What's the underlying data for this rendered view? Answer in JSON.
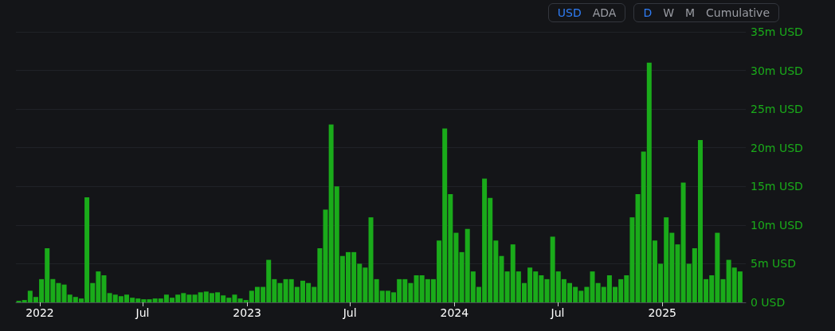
{
  "chart_data": {
    "type": "bar",
    "annotations": [
      "USD",
      "ADA",
      "D",
      "W",
      "M",
      "Cumulative"
    ],
    "x": [
      "2021-11-25",
      "2021-12-05",
      "2021-12-15",
      "2021-12-25",
      "2022-01-04",
      "2022-01-14",
      "2022-01-24",
      "2022-02-03",
      "2022-02-13",
      "2022-02-23",
      "2022-03-05",
      "2022-03-15",
      "2022-03-25",
      "2022-04-04",
      "2022-04-14",
      "2022-04-24",
      "2022-05-04",
      "2022-05-14",
      "2022-05-24",
      "2022-06-03",
      "2022-06-13",
      "2022-06-23",
      "2022-07-03",
      "2022-07-13",
      "2022-07-23",
      "2022-08-02",
      "2022-08-12",
      "2022-08-22",
      "2022-09-01",
      "2022-09-11",
      "2022-09-21",
      "2022-10-01",
      "2022-10-11",
      "2022-10-21",
      "2022-10-31",
      "2022-11-10",
      "2022-11-20",
      "2022-11-30",
      "2022-12-10",
      "2022-12-20",
      "2022-12-30",
      "2023-01-09",
      "2023-01-19",
      "2023-01-29",
      "2023-02-08",
      "2023-02-18",
      "2023-02-28",
      "2023-03-10",
      "2023-03-20",
      "2023-03-30",
      "2023-04-09",
      "2023-04-19",
      "2023-04-29",
      "2023-05-09",
      "2023-05-19",
      "2023-05-29",
      "2023-06-08",
      "2023-06-18",
      "2023-06-28",
      "2023-07-08",
      "2023-07-18",
      "2023-07-28",
      "2023-08-07",
      "2023-08-17",
      "2023-08-27",
      "2023-09-06",
      "2023-09-16",
      "2023-09-26",
      "2023-10-06",
      "2023-10-16",
      "2023-10-26",
      "2023-11-05",
      "2023-11-15",
      "2023-11-25",
      "2023-12-05",
      "2023-12-15",
      "2023-12-25",
      "2024-01-04",
      "2024-01-14",
      "2024-01-24",
      "2024-02-03",
      "2024-02-13",
      "2024-02-23",
      "2024-03-04",
      "2024-03-14",
      "2024-03-24",
      "2024-04-03",
      "2024-04-13",
      "2024-04-23",
      "2024-05-03",
      "2024-05-13",
      "2024-05-23",
      "2024-06-02",
      "2024-06-12",
      "2024-06-22",
      "2024-07-02",
      "2024-07-12",
      "2024-07-22",
      "2024-08-01",
      "2024-08-11",
      "2024-08-21",
      "2024-08-31",
      "2024-09-10",
      "2024-09-20",
      "2024-09-30",
      "2024-10-10",
      "2024-10-20",
      "2024-10-30",
      "2024-11-09",
      "2024-11-19",
      "2024-11-29",
      "2024-12-09",
      "2024-12-19",
      "2024-12-29",
      "2025-01-08",
      "2025-01-18",
      "2025-01-28",
      "2025-02-07",
      "2025-02-17",
      "2025-02-27",
      "2025-03-09",
      "2025-03-19",
      "2025-03-29",
      "2025-04-08",
      "2025-04-18",
      "2025-04-28",
      "2025-05-08",
      "2025-05-18"
    ],
    "values": [
      0.2,
      0.3,
      1.5,
      0.7,
      3.0,
      7.0,
      3.0,
      2.5,
      2.3,
      1.0,
      0.7,
      0.5,
      13.6,
      2.5,
      4.0,
      3.5,
      1.2,
      1.0,
      0.8,
      1.0,
      0.6,
      0.5,
      0.4,
      0.4,
      0.5,
      0.5,
      1.0,
      0.6,
      1.0,
      1.2,
      1.0,
      1.0,
      1.3,
      1.4,
      1.2,
      1.3,
      0.9,
      0.6,
      1.0,
      0.5,
      0.3,
      1.5,
      2.0,
      2.0,
      5.5,
      3.0,
      2.5,
      3.0,
      3.0,
      2.0,
      2.8,
      2.5,
      2.0,
      7.0,
      12.0,
      23.0,
      15.0,
      6.0,
      6.5,
      6.5,
      5.0,
      4.5,
      11.0,
      3.0,
      1.5,
      1.5,
      1.3,
      3.0,
      3.0,
      2.5,
      3.5,
      3.5,
      3.0,
      3.0,
      8.0,
      22.5,
      14.0,
      9.0,
      6.5,
      9.5,
      4.0,
      2.0,
      16.0,
      13.5,
      8.0,
      6.0,
      4.0,
      7.5,
      4.0,
      2.5,
      4.5,
      4.0,
      3.5,
      3.0,
      8.5,
      4.0,
      3.0,
      2.5,
      2.0,
      1.5,
      2.0,
      4.0,
      2.5,
      2.0,
      3.5,
      2.0,
      3.0,
      3.5,
      11.0,
      14.0,
      19.5,
      31.0,
      8.0,
      5.0,
      11.0,
      9.0,
      7.5,
      15.5,
      5.0,
      7.0,
      21.0,
      3.0,
      3.5,
      9.0,
      3.0,
      5.5,
      4.5,
      4.0
    ],
    "color": "#1aab1a",
    "xlim": [
      "2021-11-20",
      "2025-05-28"
    ],
    "xticks": [
      {
        "value": "2022-01-01",
        "label": "2022"
      },
      {
        "value": "2022-07-01",
        "label": "Jul"
      },
      {
        "value": "2023-01-01",
        "label": "2023"
      },
      {
        "value": "2023-07-01",
        "label": "Jul"
      },
      {
        "value": "2024-01-01",
        "label": "2024"
      },
      {
        "value": "2024-07-01",
        "label": "Jul"
      },
      {
        "value": "2025-01-01",
        "label": "2025"
      }
    ],
    "ylim": [
      0,
      35
    ],
    "yticks": [
      {
        "value": 0,
        "label": "0 USD"
      },
      {
        "value": 5,
        "label": "5m USD"
      },
      {
        "value": 10,
        "label": "10m USD"
      },
      {
        "value": 15,
        "label": "15m USD"
      },
      {
        "value": 20,
        "label": "20m USD"
      },
      {
        "value": 25,
        "label": "25m USD"
      },
      {
        "value": 30,
        "label": "30m USD"
      },
      {
        "value": 35,
        "label": "35m USD"
      }
    ],
    "grid": "y"
  }
}
